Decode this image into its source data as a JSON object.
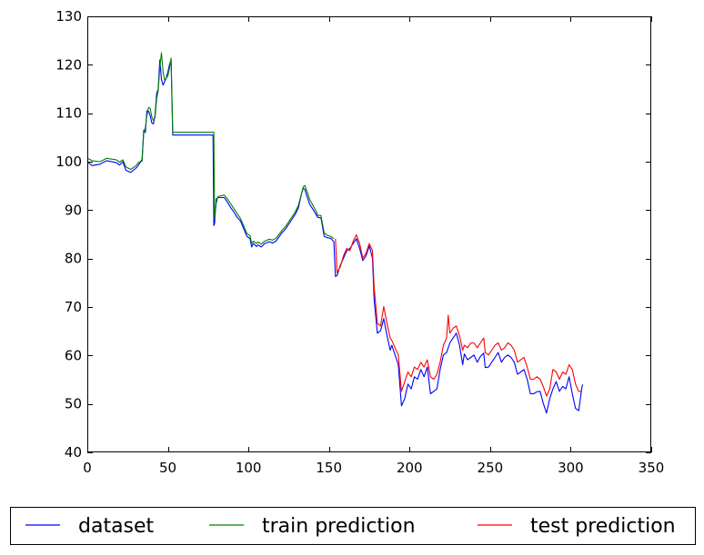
{
  "chart_data": {
    "type": "line",
    "title": "",
    "xlabel": "",
    "ylabel": "",
    "xlim": [
      0,
      350
    ],
    "ylim": [
      40,
      130
    ],
    "xticks": [
      0,
      50,
      100,
      150,
      200,
      250,
      300,
      350
    ],
    "yticks": [
      40,
      50,
      60,
      70,
      80,
      90,
      100,
      110,
      120,
      130
    ],
    "grid": false,
    "legend_position": "below plot, horizontal",
    "series": [
      {
        "name": "dataset",
        "color": "#0000ff",
        "points": [
          [
            0,
            100
          ],
          [
            3,
            99.2
          ],
          [
            8,
            99.5
          ],
          [
            12,
            100.2
          ],
          [
            18,
            99.8
          ],
          [
            20,
            99.3
          ],
          [
            22,
            100
          ],
          [
            24,
            98.2
          ],
          [
            27,
            97.8
          ],
          [
            30,
            98.6
          ],
          [
            32,
            99.4
          ],
          [
            34,
            100.5
          ],
          [
            35,
            106.5
          ],
          [
            36,
            106
          ],
          [
            37,
            110.5
          ],
          [
            38,
            110.4
          ],
          [
            39,
            109.5
          ],
          [
            40,
            108
          ],
          [
            41,
            107.8
          ],
          [
            42,
            109.5
          ],
          [
            43,
            114
          ],
          [
            44,
            115
          ],
          [
            45,
            121
          ],
          [
            46,
            117
          ],
          [
            47,
            115.8
          ],
          [
            48,
            116.5
          ],
          [
            49,
            117.3
          ],
          [
            50,
            118.5
          ],
          [
            51,
            120
          ],
          [
            52,
            121
          ],
          [
            53,
            105.5
          ],
          [
            60,
            105.5
          ],
          [
            70,
            105.5
          ],
          [
            78,
            105.5
          ],
          [
            78.5,
            86.8
          ],
          [
            79,
            87.2
          ],
          [
            80,
            92.3
          ],
          [
            81,
            92.6
          ],
          [
            85,
            92.6
          ],
          [
            87,
            91.6
          ],
          [
            89,
            90.5
          ],
          [
            91,
            89.6
          ],
          [
            93,
            88.5
          ],
          [
            95,
            87.8
          ],
          [
            97,
            86.2
          ],
          [
            99,
            84.6
          ],
          [
            101,
            84.1
          ],
          [
            102,
            82.4
          ],
          [
            103,
            83.1
          ],
          [
            105,
            82.5
          ],
          [
            106,
            82.8
          ],
          [
            108,
            82.4
          ],
          [
            110,
            83.1
          ],
          [
            113,
            83.5
          ],
          [
            115,
            83.2
          ],
          [
            117,
            83.6
          ],
          [
            119,
            84.5
          ],
          [
            121,
            85.4
          ],
          [
            123,
            86.1
          ],
          [
            125,
            87.1
          ],
          [
            127,
            88.1
          ],
          [
            129,
            89.1
          ],
          [
            131,
            90.5
          ],
          [
            133,
            93.5
          ],
          [
            134,
            94.5
          ],
          [
            135,
            94.3
          ],
          [
            136,
            93.2
          ],
          [
            138,
            91.2
          ],
          [
            140,
            90.2
          ],
          [
            142,
            89.1
          ],
          [
            143,
            88.5
          ],
          [
            145,
            88.4
          ],
          [
            147,
            84.6
          ],
          [
            149,
            84.3
          ],
          [
            151,
            84.2
          ],
          [
            153,
            83.5
          ],
          [
            154,
            76.3
          ],
          [
            155,
            76.5
          ],
          [
            157,
            78.6
          ],
          [
            159,
            80.1
          ],
          [
            161,
            81.6
          ],
          [
            163,
            82.1
          ],
          [
            165,
            83.1
          ],
          [
            167,
            84.1
          ],
          [
            169,
            82.1
          ],
          [
            171,
            79.6
          ],
          [
            173,
            80.6
          ],
          [
            175,
            82.6
          ],
          [
            177,
            80.1
          ],
          [
            178,
            71.6
          ],
          [
            180,
            64.6
          ],
          [
            182,
            65.1
          ],
          [
            184,
            67.6
          ],
          [
            186,
            64.1
          ],
          [
            188,
            61.1
          ],
          [
            189,
            62.1
          ],
          [
            191,
            60.1
          ],
          [
            193,
            58.1
          ],
          [
            195,
            49.6
          ],
          [
            197,
            51.1
          ],
          [
            199,
            54.1
          ],
          [
            201,
            53.1
          ],
          [
            203,
            55.6
          ],
          [
            205,
            55.1
          ],
          [
            207,
            57.1
          ],
          [
            209,
            55.6
          ],
          [
            211,
            57.6
          ],
          [
            213,
            52.1
          ],
          [
            215,
            52.6
          ],
          [
            217,
            53.1
          ],
          [
            219,
            57.1
          ],
          [
            221,
            60.1
          ],
          [
            223,
            60.6
          ],
          [
            225,
            62.6
          ],
          [
            227,
            63.6
          ],
          [
            229,
            64.6
          ],
          [
            231,
            62.1
          ],
          [
            233,
            58.1
          ],
          [
            234,
            60.3
          ],
          [
            236,
            59.1
          ],
          [
            238,
            59.6
          ],
          [
            240,
            60.1
          ],
          [
            242,
            58.6
          ],
          [
            244,
            59.8
          ],
          [
            246,
            60.5
          ],
          [
            247,
            57.5
          ],
          [
            249,
            57.6
          ],
          [
            251,
            58.6
          ],
          [
            253,
            59.6
          ],
          [
            255,
            60.6
          ],
          [
            257,
            58.6
          ],
          [
            259,
            59.6
          ],
          [
            261,
            60.1
          ],
          [
            263,
            59.6
          ],
          [
            265,
            58.6
          ],
          [
            267,
            56.1
          ],
          [
            269,
            56.6
          ],
          [
            271,
            57.1
          ],
          [
            273,
            55.1
          ],
          [
            275,
            52.1
          ],
          [
            277,
            52.1
          ],
          [
            279,
            52.5
          ],
          [
            281,
            52.6
          ],
          [
            283,
            50.1
          ],
          [
            285,
            48.1
          ],
          [
            287,
            51.1
          ],
          [
            289,
            53.1
          ],
          [
            291,
            54.6
          ],
          [
            293,
            52.6
          ],
          [
            295,
            53.6
          ],
          [
            297,
            53.1
          ],
          [
            299,
            55.6
          ],
          [
            301,
            52.1
          ],
          [
            303,
            49.1
          ],
          [
            305,
            48.6
          ],
          [
            307,
            53.5
          ],
          [
            307.5,
            54
          ]
        ]
      },
      {
        "name": "train prediction",
        "color": "#008000",
        "points": [
          [
            0,
            100.7
          ],
          [
            3,
            100.2
          ],
          [
            8,
            100
          ],
          [
            12,
            100.7
          ],
          [
            18,
            100.4
          ],
          [
            20,
            99.9
          ],
          [
            22,
            100.4
          ],
          [
            24,
            98.9
          ],
          [
            27,
            98.4
          ],
          [
            30,
            99.1
          ],
          [
            32,
            99.9
          ],
          [
            34,
            100.1
          ],
          [
            35,
            106
          ],
          [
            36,
            107
          ],
          [
            37,
            109.5
          ],
          [
            38,
            111.2
          ],
          [
            39,
            111
          ],
          [
            40,
            109.2
          ],
          [
            41,
            108.5
          ],
          [
            42,
            109
          ],
          [
            43,
            113
          ],
          [
            44,
            114.6
          ],
          [
            45,
            119.5
          ],
          [
            46,
            122.5
          ],
          [
            47,
            118.5
          ],
          [
            48,
            116.8
          ],
          [
            49,
            117.2
          ],
          [
            50,
            117.8
          ],
          [
            51,
            119.3
          ],
          [
            52,
            121.4
          ],
          [
            53,
            106.1
          ],
          [
            60,
            106.1
          ],
          [
            70,
            106.1
          ],
          [
            78.5,
            106.1
          ],
          [
            79,
            88.2
          ],
          [
            80,
            91.4
          ],
          [
            81,
            92.8
          ],
          [
            85,
            93.1
          ],
          [
            87,
            92.3
          ],
          [
            89,
            91.3
          ],
          [
            91,
            90.3
          ],
          [
            93,
            89.3
          ],
          [
            95,
            88.3
          ],
          [
            97,
            86.8
          ],
          [
            99,
            85.2
          ],
          [
            101,
            84.7
          ],
          [
            102,
            83.1
          ],
          [
            103,
            83.6
          ],
          [
            105,
            83.1
          ],
          [
            106,
            83.4
          ],
          [
            108,
            83
          ],
          [
            110,
            83.6
          ],
          [
            113,
            84
          ],
          [
            115,
            83.8
          ],
          [
            117,
            84.2
          ],
          [
            119,
            85
          ],
          [
            121,
            85.9
          ],
          [
            123,
            86.6
          ],
          [
            125,
            87.6
          ],
          [
            127,
            88.6
          ],
          [
            129,
            89.6
          ],
          [
            131,
            91
          ],
          [
            133,
            93.5
          ],
          [
            134,
            94.8
          ],
          [
            135,
            95.1
          ],
          [
            136,
            94.2
          ],
          [
            138,
            92.2
          ],
          [
            140,
            91
          ],
          [
            142,
            89.8
          ],
          [
            143,
            88.9
          ],
          [
            145,
            88.9
          ],
          [
            147,
            85.3
          ],
          [
            149,
            84.8
          ],
          [
            151,
            84.6
          ],
          [
            153,
            84.1
          ]
        ]
      },
      {
        "name": "test prediction",
        "color": "#ff0000",
        "points": [
          [
            154,
            84.1
          ],
          [
            155,
            77.1
          ],
          [
            157,
            78.3
          ],
          [
            159,
            80.6
          ],
          [
            161,
            82.1
          ],
          [
            163,
            81.6
          ],
          [
            165,
            83.6
          ],
          [
            167,
            84.9
          ],
          [
            169,
            83.1
          ],
          [
            171,
            80.1
          ],
          [
            173,
            81.1
          ],
          [
            175,
            83.1
          ],
          [
            177,
            81.6
          ],
          [
            178,
            74.1
          ],
          [
            180,
            66.6
          ],
          [
            182,
            66.1
          ],
          [
            184,
            70.1
          ],
          [
            186,
            66.6
          ],
          [
            188,
            63.6
          ],
          [
            189,
            63.1
          ],
          [
            191,
            61.6
          ],
          [
            193,
            60.1
          ],
          [
            195,
            52.6
          ],
          [
            197,
            54.6
          ],
          [
            199,
            56.6
          ],
          [
            201,
            55.6
          ],
          [
            203,
            57.6
          ],
          [
            205,
            57.1
          ],
          [
            207,
            58.6
          ],
          [
            209,
            57.6
          ],
          [
            211,
            59.1
          ],
          [
            213,
            55.6
          ],
          [
            215,
            55.1
          ],
          [
            217,
            56.1
          ],
          [
            219,
            58.6
          ],
          [
            221,
            62.1
          ],
          [
            223,
            63.6
          ],
          [
            224,
            68.3
          ],
          [
            225,
            64.6
          ],
          [
            227,
            65.6
          ],
          [
            229,
            66.1
          ],
          [
            231,
            64.1
          ],
          [
            233,
            61.1
          ],
          [
            234,
            62.1
          ],
          [
            236,
            61.6
          ],
          [
            238,
            62.6
          ],
          [
            240,
            62.6
          ],
          [
            242,
            61.6
          ],
          [
            244,
            62.6
          ],
          [
            246,
            63.6
          ],
          [
            247,
            60.6
          ],
          [
            249,
            60.1
          ],
          [
            251,
            61.1
          ],
          [
            253,
            62.1
          ],
          [
            255,
            62.6
          ],
          [
            257,
            61.1
          ],
          [
            259,
            61.6
          ],
          [
            261,
            62.6
          ],
          [
            263,
            62.1
          ],
          [
            265,
            61.1
          ],
          [
            267,
            58.6
          ],
          [
            269,
            59.1
          ],
          [
            271,
            59.6
          ],
          [
            273,
            57.6
          ],
          [
            275,
            55.1
          ],
          [
            277,
            55.1
          ],
          [
            279,
            55.6
          ],
          [
            281,
            55.1
          ],
          [
            283,
            53.6
          ],
          [
            285,
            51.6
          ],
          [
            287,
            53.1
          ],
          [
            289,
            57.1
          ],
          [
            291,
            56.6
          ],
          [
            293,
            55.1
          ],
          [
            295,
            56.6
          ],
          [
            297,
            56.1
          ],
          [
            299,
            58.1
          ],
          [
            301,
            57.1
          ],
          [
            303,
            54.1
          ],
          [
            305,
            52.6
          ],
          [
            307,
            52.6
          ]
        ]
      }
    ]
  }
}
